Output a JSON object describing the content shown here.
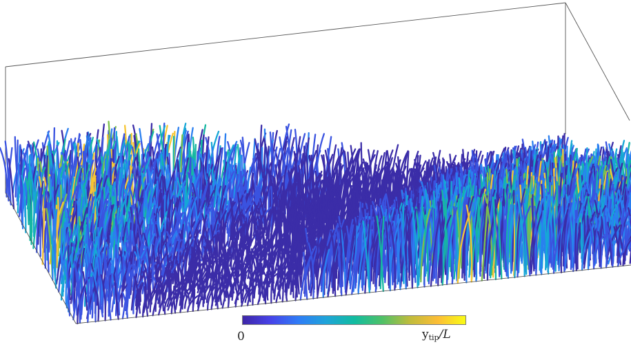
{
  "figure": {
    "colorbar": {
      "min_label": "0",
      "max_label_main": "y",
      "max_label_sub": "tip",
      "max_label_tail": "/L",
      "colors": [
        "#3e26a8",
        "#4743e8",
        "#2f7cf6",
        "#1fa4d9",
        "#11bca1",
        "#4ec168",
        "#bfbc3c",
        "#fcbd36",
        "#f9fb15"
      ]
    },
    "fiber_colors": {
      "low": "#3b2da8",
      "mid_low": "#3a53e0",
      "mid": "#2a7ff0",
      "mid_high": "#16a7d6",
      "teal": "#16b7a2",
      "green": "#7cc04c",
      "yellow": "#f7c533"
    },
    "box_line_color": "#555555"
  }
}
